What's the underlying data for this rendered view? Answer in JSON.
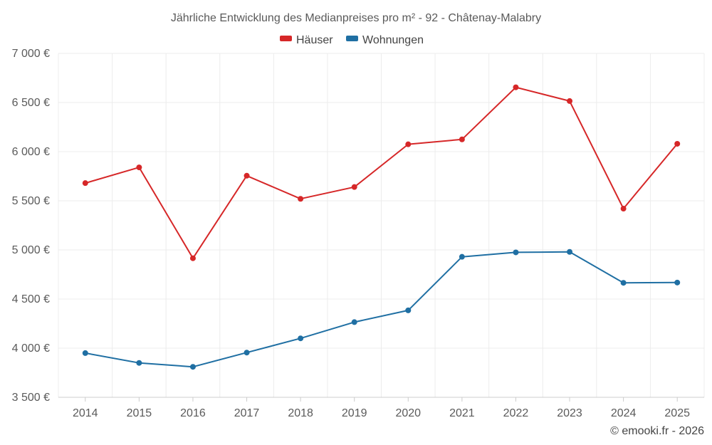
{
  "chart_data": {
    "type": "line",
    "title": "Jährliche Entwicklung des Medianpreises pro m² - 92 - Châtenay-Malabry",
    "xlabel": "",
    "ylabel": "",
    "categories": [
      "2014",
      "2015",
      "2016",
      "2017",
      "2018",
      "2019",
      "2020",
      "2021",
      "2022",
      "2023",
      "2024",
      "2025"
    ],
    "ylim": [
      3500,
      7000
    ],
    "yticks": [
      3500,
      4000,
      4500,
      5000,
      5500,
      6000,
      6500,
      7000
    ],
    "ytick_labels": [
      "3 500 €",
      "4 000 €",
      "4 500 €",
      "5 000 €",
      "5 500 €",
      "6 000 €",
      "6 500 €",
      "7 000 €"
    ],
    "grid": true,
    "legend_position": "top-center",
    "series": [
      {
        "name": "Häuser",
        "color": "#d62728",
        "values": [
          5680,
          5840,
          4915,
          5755,
          5520,
          5640,
          6075,
          6125,
          6655,
          6515,
          5420,
          6080
        ]
      },
      {
        "name": "Wohnungen",
        "color": "#1f6fa3",
        "values": [
          3950,
          3850,
          3810,
          3955,
          4100,
          4265,
          4385,
          4930,
          4975,
          4980,
          4665,
          4668
        ]
      }
    ],
    "credit": "© emooki.fr - 2026"
  }
}
